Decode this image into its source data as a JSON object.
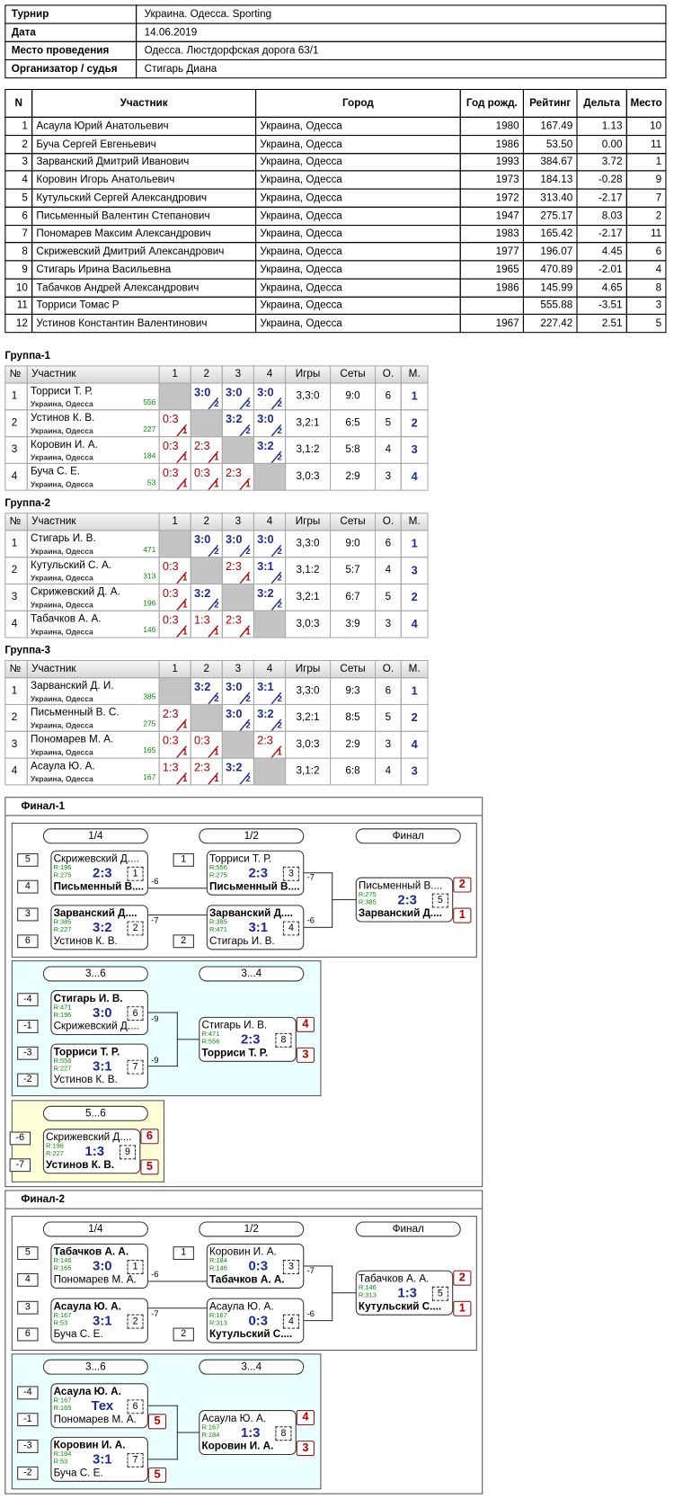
{
  "info": [
    {
      "label": "Турнир",
      "value": "Украина. Одесса. Sporting"
    },
    {
      "label": "Дата",
      "value": "14.06.2019"
    },
    {
      "label": "Место проведения",
      "value": "Одесса. Люстдорфская дорога 63/1"
    },
    {
      "label": "Организатор / судья",
      "value": "Стигарь Диана"
    }
  ],
  "participants": {
    "headers": [
      "N",
      "Участник",
      "Город",
      "Год рожд.",
      "Рейтинг",
      "Дельта",
      "Место"
    ],
    "rows": [
      [
        "1",
        "Асаула Юрий Анатольевич",
        "Украина, Одесса",
        "1980",
        "167.49",
        "1.13",
        "10"
      ],
      [
        "2",
        "Буча Сергей Евгеньевич",
        "Украина, Одесса",
        "1986",
        "53.50",
        "0.00",
        "11"
      ],
      [
        "3",
        "Зарванский Дмитрий Иванович",
        "Украина, Одесса",
        "1993",
        "384.67",
        "3.72",
        "1"
      ],
      [
        "4",
        "Коровин Игорь Анатольевич",
        "Украина, Одесса",
        "1973",
        "184.13",
        "-0.28",
        "9"
      ],
      [
        "5",
        "Кутульский Сергей Александрович",
        "Украина, Одесса",
        "1972",
        "313.40",
        "-2.17",
        "7"
      ],
      [
        "6",
        "Письменный Валентин Степанович",
        "Украина, Одесса",
        "1947",
        "275.17",
        "8.03",
        "2"
      ],
      [
        "7",
        "Пономарев Максим Александрович",
        "Украина, Одесса",
        "1983",
        "165.42",
        "-2.17",
        "11"
      ],
      [
        "8",
        "Скрижевский Дмитрий Александрович",
        "Украина, Одесса",
        "1977",
        "196.07",
        "4.45",
        "6"
      ],
      [
        "9",
        "Стигарь Ирина Васильевна",
        "Украина, Одесса",
        "1965",
        "470.89",
        "-2.01",
        "4"
      ],
      [
        "10",
        "Табачков Андрей Александрович",
        "Украина, Одесса",
        "1986",
        "145.99",
        "4.65",
        "8"
      ],
      [
        "11",
        "Торриси Томас Р",
        "Украина, Одесса",
        null,
        "555.88",
        "-3.51",
        "3"
      ],
      [
        "12",
        "Устинов Константин Валентинович",
        "Украина, Одесса",
        "1967",
        "227.42",
        "2.51",
        "5"
      ]
    ]
  },
  "groups": [
    {
      "title": "Группа-1",
      "headers": [
        "№",
        "Участник",
        "1",
        "2",
        "3",
        "4",
        "Игры",
        "Сеты",
        "О.",
        "М."
      ],
      "rows": [
        {
          "number": "1",
          "name": "Торриси Т. Р.",
          "city": "Украина, Одесса",
          "rating": "556",
          "results": [
            null,
            {
              "score": "3:0",
              "points": "2",
              "win": true
            },
            {
              "score": "3:0",
              "points": "2",
              "win": true
            },
            {
              "score": "3:0",
              "points": "2",
              "win": true
            }
          ],
          "games": "3,3:0",
          "sets": "9:0",
          "points": "6",
          "place": "1"
        },
        {
          "number": "2",
          "name": "Устинов К. В.",
          "city": "Украина, Одесса",
          "rating": "227",
          "results": [
            {
              "score": "0:3",
              "points": "1",
              "win": false
            },
            null,
            {
              "score": "3:2",
              "points": "2",
              "win": true
            },
            {
              "score": "3:0",
              "points": "2",
              "win": true
            }
          ],
          "games": "3,2:1",
          "sets": "6:5",
          "points": "5",
          "place": "2"
        },
        {
          "number": "3",
          "name": "Коровин И. А.",
          "city": "Украина, Одесса",
          "rating": "184",
          "results": [
            {
              "score": "0:3",
              "points": "1",
              "win": false
            },
            {
              "score": "2:3",
              "points": "1",
              "win": false
            },
            null,
            {
              "score": "3:2",
              "points": "2",
              "win": true
            }
          ],
          "games": "3,1:2",
          "sets": "5:8",
          "points": "4",
          "place": "3"
        },
        {
          "number": "4",
          "name": "Буча С. Е.",
          "city": "Украина, Одесса",
          "rating": "53",
          "results": [
            {
              "score": "0:3",
              "points": "1",
              "win": false
            },
            {
              "score": "0:3",
              "points": "1",
              "win": false
            },
            {
              "score": "2:3",
              "points": "1",
              "win": false
            },
            null
          ],
          "games": "3,0:3",
          "sets": "2:9",
          "points": "3",
          "place": "4"
        }
      ]
    },
    {
      "title": "Группа-2",
      "headers": [
        "№",
        "Участник",
        "1",
        "2",
        "3",
        "4",
        "Игры",
        "Сеты",
        "О.",
        "М."
      ],
      "rows": [
        {
          "number": "1",
          "name": "Стигарь И. В.",
          "city": "Украина, Одесса",
          "rating": "471",
          "results": [
            null,
            {
              "score": "3:0",
              "points": "2",
              "win": true
            },
            {
              "score": "3:0",
              "points": "2",
              "win": true
            },
            {
              "score": "3:0",
              "points": "2",
              "win": true
            }
          ],
          "games": "3,3:0",
          "sets": "9:0",
          "points": "6",
          "place": "1"
        },
        {
          "number": "2",
          "name": "Кутульский С. А.",
          "city": "Украина, Одесса",
          "rating": "313",
          "results": [
            {
              "score": "0:3",
              "points": "1",
              "win": false
            },
            null,
            {
              "score": "2:3",
              "points": "1",
              "win": false
            },
            {
              "score": "3:1",
              "points": "2",
              "win": true
            }
          ],
          "games": "3,1:2",
          "sets": "5:7",
          "points": "4",
          "place": "3"
        },
        {
          "number": "3",
          "name": "Скрижевский Д. А.",
          "city": "Украина, Одесса",
          "rating": "196",
          "results": [
            {
              "score": "0:3",
              "points": "1",
              "win": false
            },
            {
              "score": "3:2",
              "points": "2",
              "win": true
            },
            null,
            {
              "score": "3:2",
              "points": "2",
              "win": true
            }
          ],
          "games": "3,2:1",
          "sets": "6:7",
          "points": "5",
          "place": "2"
        },
        {
          "number": "4",
          "name": "Табачков А. А.",
          "city": "Украина, Одесса",
          "rating": "146",
          "results": [
            {
              "score": "0:3",
              "points": "1",
              "win": false
            },
            {
              "score": "1:3",
              "points": "1",
              "win": false
            },
            {
              "score": "2:3",
              "points": "1",
              "win": false
            },
            null
          ],
          "games": "3,0:3",
          "sets": "3:9",
          "points": "3",
          "place": "4"
        }
      ]
    },
    {
      "title": "Группа-3",
      "headers": [
        "№",
        "Участник",
        "1",
        "2",
        "3",
        "4",
        "Игры",
        "Сеты",
        "О.",
        "М."
      ],
      "rows": [
        {
          "number": "1",
          "name": "Зарванский Д. И.",
          "city": "Украина, Одесса",
          "rating": "385",
          "results": [
            null,
            {
              "score": "3:2",
              "points": "2",
              "win": true
            },
            {
              "score": "3:0",
              "points": "2",
              "win": true
            },
            {
              "score": "3:1",
              "points": "2",
              "win": true
            }
          ],
          "games": "3,3:0",
          "sets": "9:3",
          "points": "6",
          "place": "1"
        },
        {
          "number": "2",
          "name": "Письменный В. С.",
          "city": "Украина, Одесса",
          "rating": "275",
          "results": [
            {
              "score": "2:3",
              "points": "1",
              "win": false
            },
            null,
            {
              "score": "3:0",
              "points": "2",
              "win": true
            },
            {
              "score": "3:2",
              "points": "2",
              "win": true
            }
          ],
          "games": "3,2:1",
          "sets": "8:5",
          "points": "5",
          "place": "2"
        },
        {
          "number": "3",
          "name": "Пономарев М. А.",
          "city": "Украина, Одесса",
          "rating": "165",
          "results": [
            {
              "score": "0:3",
              "points": "1",
              "win": false
            },
            {
              "score": "0:3",
              "points": "1",
              "win": false
            },
            null,
            {
              "score": "2:3",
              "points": "1",
              "win": false
            }
          ],
          "games": "3,0:3",
          "sets": "2:9",
          "points": "3",
          "place": "4"
        },
        {
          "number": "4",
          "name": "Асаула Ю. А.",
          "city": "Украина, Одесса",
          "rating": "167",
          "results": [
            {
              "score": "1:3",
              "points": "1",
              "win": false
            },
            {
              "score": "2:3",
              "points": "1",
              "win": false
            },
            {
              "score": "3:2",
              "points": "2",
              "win": true
            },
            null
          ],
          "games": "3,1:2",
          "sets": "6:8",
          "points": "4",
          "place": "3"
        }
      ]
    }
  ],
  "finals": [
    {
      "title": "Финал-1",
      "panels": [
        {
          "rounds": [
            "1/4",
            "1/2",
            "Финал"
          ],
          "matches": [
            {
              "seeds": {
                "top": "5",
                "bottom": "4"
              },
              "top": {
                "name": "Скрижевский Д....",
                "rating": "R:196"
              },
              "bottom": {
                "name": "Письменный В....",
                "rating": "R:275"
              },
              "winner": "bottom",
              "score": "2:3",
              "number": "1",
              "loser": "-6"
            },
            {
              "seeds": {
                "top": "3",
                "bottom": "6"
              },
              "top": {
                "name": "Зарванский Д....",
                "rating": "R:385"
              },
              "bottom": {
                "name": "Устинов К. В.",
                "rating": "R:227"
              },
              "winner": "top",
              "score": "3:2",
              "number": "2",
              "loser": "-7"
            },
            {
              "seeds": {
                "top": "1"
              },
              "top": {
                "name": "Торриси Т. Р.",
                "rating": "R:556"
              },
              "bottom": {
                "name": "Письменный В....",
                "rating": "R:275"
              },
              "winner": "bottom",
              "score": "2:3",
              "number": "3",
              "loser": "-7"
            },
            {
              "seeds": {
                "bottom": "2"
              },
              "top": {
                "name": "Зарванский Д....",
                "rating": "R:385"
              },
              "bottom": {
                "name": "Стигарь И. В.",
                "rating": "R:471"
              },
              "winner": "top",
              "score": "3:1",
              "number": "4",
              "loser": "-6"
            },
            {
              "top": {
                "name": "Письменный В....",
                "rating": "R:275"
              },
              "bottom": {
                "name": "Зарванский Д....",
                "rating": "R:385"
              },
              "winner": "bottom",
              "score": "2:3",
              "number": "5",
              "places": {
                "top": "2",
                "bottom": "1"
              }
            }
          ]
        },
        {
          "rounds": [
            "3...6",
            "3...4"
          ],
          "matches": [
            {
              "seeds": {
                "top": "-4",
                "bottom": "-1"
              },
              "top": {
                "name": "Стигарь И. В.",
                "rating": "R:471"
              },
              "bottom": {
                "name": "Скрижевский Д....",
                "rating": "R:196"
              },
              "winner": "top",
              "score": "3:0",
              "number": "6",
              "loser": "-9"
            },
            {
              "seeds": {
                "top": "-3",
                "bottom": "-2"
              },
              "top": {
                "name": "Торриси Т. Р.",
                "rating": "R:556"
              },
              "bottom": {
                "name": "Устинов К. В.",
                "rating": "R:227"
              },
              "winner": "top",
              "score": "3:1",
              "number": "7",
              "loser": "-9"
            },
            {
              "top": {
                "name": "Стигарь И. В.",
                "rating": "R:471"
              },
              "bottom": {
                "name": "Торриси Т. Р.",
                "rating": "R:556"
              },
              "winner": "bottom",
              "score": "2:3",
              "number": "8",
              "places": {
                "top": "4",
                "bottom": "3"
              }
            }
          ]
        },
        {
          "rounds": [
            "5...6"
          ],
          "matches": [
            {
              "seeds": {
                "top": "-6",
                "bottom": "-7"
              },
              "top": {
                "name": "Скрижевский Д....",
                "rating": "R:196"
              },
              "bottom": {
                "name": "Устинов К. В.",
                "rating": "R:227"
              },
              "winner": "bottom",
              "score": "1:3",
              "number": "9",
              "places": {
                "top": "6",
                "bottom": "5"
              }
            }
          ]
        }
      ]
    },
    {
      "title": "Финал-2",
      "panels": [
        {
          "rounds": [
            "1/4",
            "1/2",
            "Финал"
          ],
          "matches": [
            {
              "seeds": {
                "top": "5",
                "bottom": "4"
              },
              "top": {
                "name": "Табачков А. А.",
                "rating": "R:146"
              },
              "bottom": {
                "name": "Пономарев М. А.",
                "rating": "R:165"
              },
              "winner": "top",
              "score": "3:0",
              "number": "1",
              "loser": "-6"
            },
            {
              "seeds": {
                "top": "3",
                "bottom": "6"
              },
              "top": {
                "name": "Асаула Ю. А.",
                "rating": "R:167"
              },
              "bottom": {
                "name": "Буча С. Е.",
                "rating": "R:53"
              },
              "winner": "top",
              "score": "3:1",
              "number": "2",
              "loser": "-7"
            },
            {
              "seeds": {
                "top": "1"
              },
              "top": {
                "name": "Коровин И. А.",
                "rating": "R:184"
              },
              "bottom": {
                "name": "Табачков А. А.",
                "rating": "R:146"
              },
              "winner": "bottom",
              "score": "0:3",
              "number": "3",
              "loser": "-7"
            },
            {
              "seeds": {
                "bottom": "2"
              },
              "top": {
                "name": "Асаула Ю. А.",
                "rating": "R:167"
              },
              "bottom": {
                "name": "Кутульский С....",
                "rating": "R:313"
              },
              "winner": "bottom",
              "score": "0:3",
              "number": "4",
              "loser": "-6"
            },
            {
              "top": {
                "name": "Табачков А. А.",
                "rating": "R:146"
              },
              "bottom": {
                "name": "Кутульский С....",
                "rating": "R:313"
              },
              "winner": "bottom",
              "score": "1:3",
              "number": "5",
              "places": {
                "top": "2",
                "bottom": "1"
              }
            }
          ]
        },
        {
          "rounds": [
            "3...6",
            "3...4"
          ],
          "matches": [
            {
              "seeds": {
                "top": "-4",
                "bottom": "-1"
              },
              "top": {
                "name": "Асаула Ю. А.",
                "rating": "R:167"
              },
              "bottom": {
                "name": "Пономарев М. А.",
                "rating": "R:165"
              },
              "winner": "top",
              "score": "Тех",
              "number": "6",
              "places": {
                "bottom": "5"
              }
            },
            {
              "seeds": {
                "top": "-3",
                "bottom": "-2"
              },
              "top": {
                "name": "Коровин И. А.",
                "rating": "R:184"
              },
              "bottom": {
                "name": "Буча С. Е.",
                "rating": "R:53"
              },
              "winner": "top",
              "score": "3:1",
              "number": "7",
              "places": {
                "bottom": "5"
              }
            },
            {
              "top": {
                "name": "Асаула Ю. А.",
                "rating": "R:167"
              },
              "bottom": {
                "name": "Коровин И. А.",
                "rating": "R:184"
              },
              "winner": "bottom",
              "score": "1:3",
              "number": "8",
              "places": {
                "top": "4",
                "bottom": "3"
              }
            }
          ]
        }
      ]
    }
  ]
}
